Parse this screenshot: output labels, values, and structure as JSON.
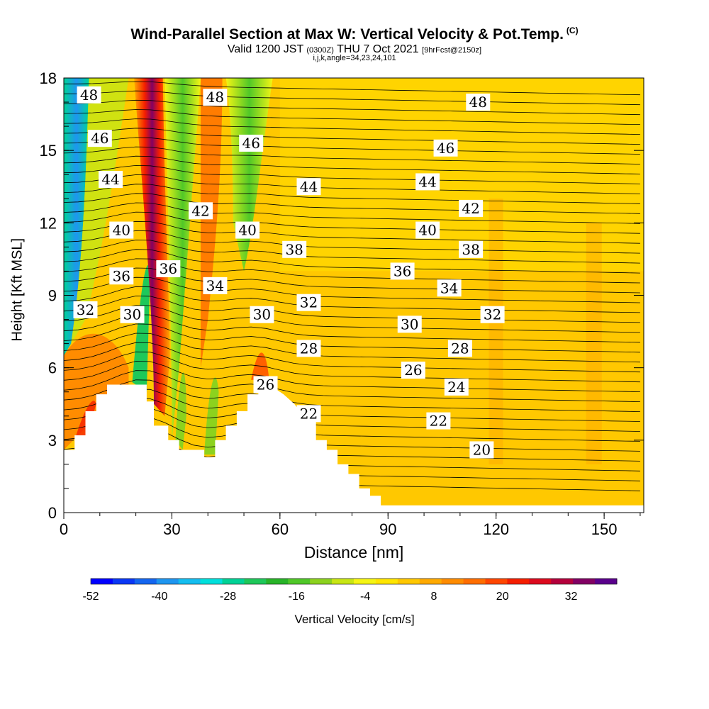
{
  "chart_data": {
    "type": "heatmap",
    "title": "Wind-Parallel Section at Max W: Vertical Velocity & Pot.Temp.",
    "title_mark": "(C)",
    "subtitle_main": "Valid 1200 JST",
    "subtitle_utc": "(0300Z)",
    "subtitle_date": "THU 7 Oct 2021",
    "subtitle_fcst": "[9hrFcst@2150z]",
    "subtitle_line2": "i,j,k,angle=34,23,24,101",
    "xlabel": "Distance [nm]",
    "ylabel": "Height [Kft MSL]",
    "xlim": [
      0,
      161
    ],
    "ylim": [
      0,
      18
    ],
    "x_ticks": [
      0,
      30,
      60,
      90,
      120,
      150
    ],
    "y_ticks": [
      0,
      3,
      6,
      9,
      12,
      15,
      18
    ],
    "colorbar": {
      "title": "Vertical Velocity [cm/s]",
      "min": -52,
      "max": 40,
      "step": 4,
      "tick_values": [
        -52,
        -40,
        -28,
        -16,
        -4,
        8,
        20,
        32
      ],
      "colors": [
        "#0000ff",
        "#0a37f5",
        "#1466f0",
        "#1e96f0",
        "#14bef0",
        "#00e0dc",
        "#00d296",
        "#1ec85a",
        "#28b428",
        "#50c828",
        "#8cd21e",
        "#c8e614",
        "#f5f514",
        "#ffe600",
        "#ffc800",
        "#ffaa00",
        "#ff8c00",
        "#ff6e00",
        "#ff4600",
        "#f51e00",
        "#dc0a1e",
        "#b4003c",
        "#820064",
        "#5a008c"
      ]
    },
    "theta_contour_labels": [
      {
        "x": 7,
        "y": 17.3,
        "value": "48"
      },
      {
        "x": 42,
        "y": 17.2,
        "value": "48"
      },
      {
        "x": 115,
        "y": 17.0,
        "value": "48"
      },
      {
        "x": 10,
        "y": 15.5,
        "value": "46"
      },
      {
        "x": 52,
        "y": 15.3,
        "value": "46"
      },
      {
        "x": 106,
        "y": 15.1,
        "value": "46"
      },
      {
        "x": 13,
        "y": 13.8,
        "value": "44"
      },
      {
        "x": 68,
        "y": 13.5,
        "value": "44"
      },
      {
        "x": 101,
        "y": 13.7,
        "value": "44"
      },
      {
        "x": 38,
        "y": 12.5,
        "value": "42"
      },
      {
        "x": 113,
        "y": 12.6,
        "value": "42"
      },
      {
        "x": 16,
        "y": 11.7,
        "value": "40"
      },
      {
        "x": 51,
        "y": 11.7,
        "value": "40"
      },
      {
        "x": 101,
        "y": 11.7,
        "value": "40"
      },
      {
        "x": 64,
        "y": 10.9,
        "value": "38"
      },
      {
        "x": 113,
        "y": 10.9,
        "value": "38"
      },
      {
        "x": 29,
        "y": 10.1,
        "value": "36"
      },
      {
        "x": 16,
        "y": 9.8,
        "value": "36"
      },
      {
        "x": 94,
        "y": 10.0,
        "value": "36"
      },
      {
        "x": 42,
        "y": 9.4,
        "value": "34"
      },
      {
        "x": 107,
        "y": 9.3,
        "value": "34"
      },
      {
        "x": 68,
        "y": 8.7,
        "value": "32"
      },
      {
        "x": 6,
        "y": 8.4,
        "value": "32"
      },
      {
        "x": 119,
        "y": 8.2,
        "value": "32"
      },
      {
        "x": 19,
        "y": 8.2,
        "value": "30"
      },
      {
        "x": 55,
        "y": 8.2,
        "value": "30"
      },
      {
        "x": 96,
        "y": 7.8,
        "value": "30"
      },
      {
        "x": 68,
        "y": 6.8,
        "value": "28"
      },
      {
        "x": 110,
        "y": 6.8,
        "value": "28"
      },
      {
        "x": 97,
        "y": 5.9,
        "value": "26"
      },
      {
        "x": 56,
        "y": 5.3,
        "value": "26"
      },
      {
        "x": 109,
        "y": 5.2,
        "value": "24"
      },
      {
        "x": 68,
        "y": 4.1,
        "value": "22"
      },
      {
        "x": 104,
        "y": 3.8,
        "value": "22"
      },
      {
        "x": 116,
        "y": 2.6,
        "value": "20"
      }
    ],
    "terrain_kft": [
      [
        0,
        2.6
      ],
      [
        3,
        2.6
      ],
      [
        3,
        3.2
      ],
      [
        6,
        3.2
      ],
      [
        6,
        4.2
      ],
      [
        9,
        4.2
      ],
      [
        9,
        4.9
      ],
      [
        12,
        4.9
      ],
      [
        12,
        5.3
      ],
      [
        19,
        5.3
      ],
      [
        23,
        5.3
      ],
      [
        23,
        4.6
      ],
      [
        25,
        4.6
      ],
      [
        25,
        3.6
      ],
      [
        29,
        3.6
      ],
      [
        29,
        3.0
      ],
      [
        32,
        3.0
      ],
      [
        32,
        2.6
      ],
      [
        39,
        2.6
      ],
      [
        39,
        2.3
      ],
      [
        42,
        2.3
      ],
      [
        42,
        3.0
      ],
      [
        45,
        3.0
      ],
      [
        45,
        3.6
      ],
      [
        48,
        3.6
      ],
      [
        48,
        4.2
      ],
      [
        51,
        4.2
      ],
      [
        51,
        4.9
      ],
      [
        54,
        4.9
      ],
      [
        54,
        5.2
      ],
      [
        58,
        5.2
      ],
      [
        61,
        4.9
      ],
      [
        64,
        4.5
      ],
      [
        67,
        3.9
      ],
      [
        70,
        3.9
      ],
      [
        70,
        3.0
      ],
      [
        73,
        3.0
      ],
      [
        73,
        2.6
      ],
      [
        76,
        2.6
      ],
      [
        76,
        2.0
      ],
      [
        79,
        2.0
      ],
      [
        79,
        1.6
      ],
      [
        82,
        1.6
      ],
      [
        82,
        1.0
      ],
      [
        85,
        1.0
      ],
      [
        85,
        0.7
      ],
      [
        88,
        0.7
      ],
      [
        88,
        0.3
      ],
      [
        91,
        0.3
      ]
    ]
  }
}
